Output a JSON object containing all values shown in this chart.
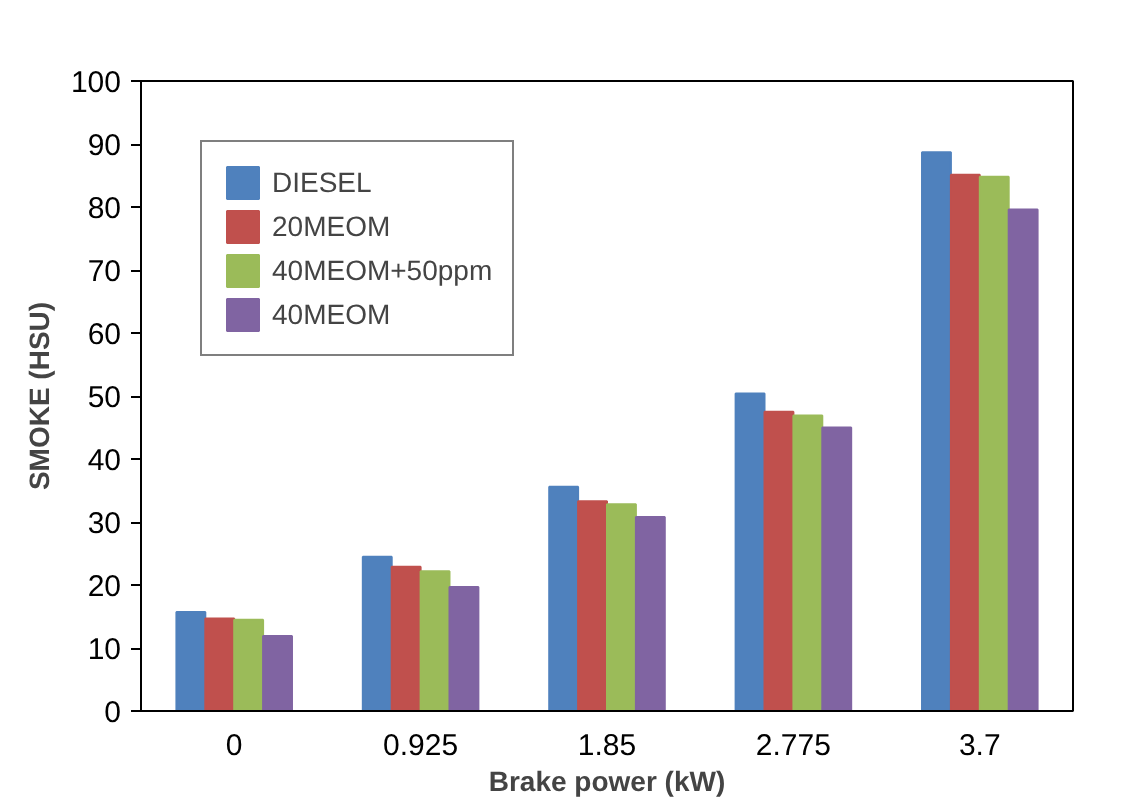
{
  "chart_data": {
    "type": "bar",
    "xlabel": "Brake power (kW)",
    "ylabel": "SMOKE (HSU)",
    "categories": [
      "0",
      "0.925",
      "1.85",
      "2.775",
      "3.7"
    ],
    "series": [
      {
        "name": "DIESEL",
        "color": "#4f81bd",
        "values": [
          15.7,
          24.5,
          35.6,
          50.4,
          88.7
        ]
      },
      {
        "name": "20MEOM",
        "color": "#c0504d",
        "values": [
          14.7,
          22.9,
          33.3,
          47.5,
          85.1
        ]
      },
      {
        "name": "40MEOM+50ppm",
        "color": "#9bbb59",
        "values": [
          14.5,
          22.2,
          32.8,
          46.9,
          84.8
        ]
      },
      {
        "name": "40MEOM",
        "color": "#8064a2",
        "values": [
          11.9,
          19.7,
          30.8,
          45.0,
          79.6
        ]
      }
    ],
    "ylim": [
      0,
      100
    ],
    "yticks": [
      0,
      10,
      20,
      30,
      40,
      50,
      60,
      70,
      80,
      90,
      100
    ],
    "grid": false,
    "legend": "top left"
  }
}
